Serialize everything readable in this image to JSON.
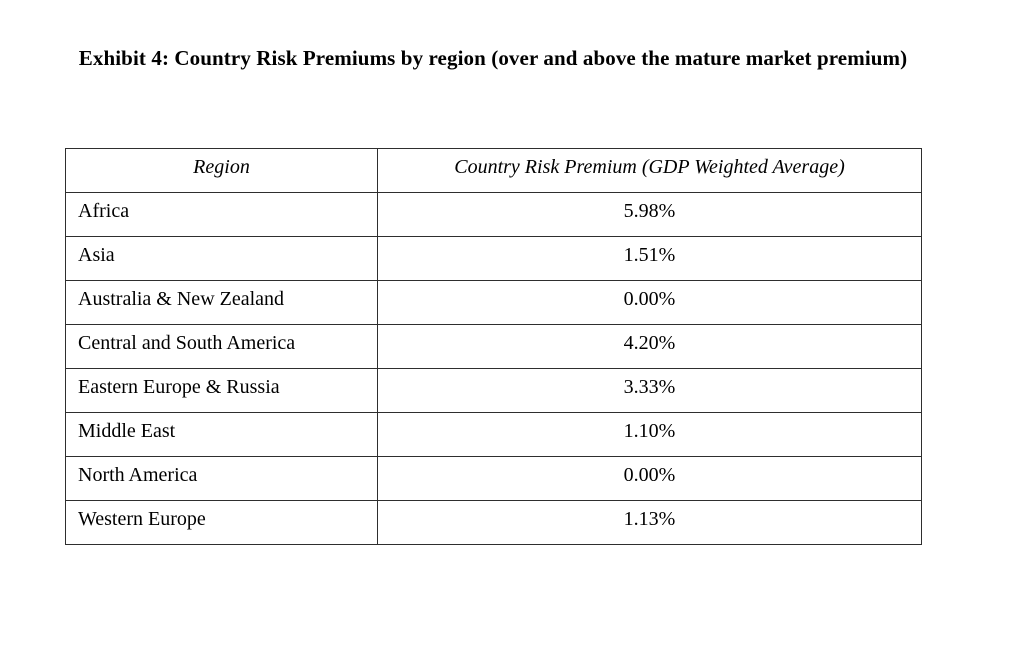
{
  "title": "Exhibit 4: Country Risk Premiums by region (over and above the mature market premium)",
  "table": {
    "headers": [
      "Region",
      "Country Risk Premium (GDP Weighted Average)"
    ],
    "rows": [
      {
        "region": "Africa",
        "premium": "5.98%"
      },
      {
        "region": "Asia",
        "premium": "1.51%"
      },
      {
        "region": "Australia & New Zealand",
        "premium": "0.00%"
      },
      {
        "region": "Central and South America",
        "premium": "4.20%"
      },
      {
        "region": "Eastern Europe & Russia",
        "premium": "3.33%"
      },
      {
        "region": "Middle East",
        "premium": "1.10%"
      },
      {
        "region": "North America",
        "premium": "0.00%"
      },
      {
        "region": "Western Europe",
        "premium": "1.13%"
      }
    ]
  }
}
